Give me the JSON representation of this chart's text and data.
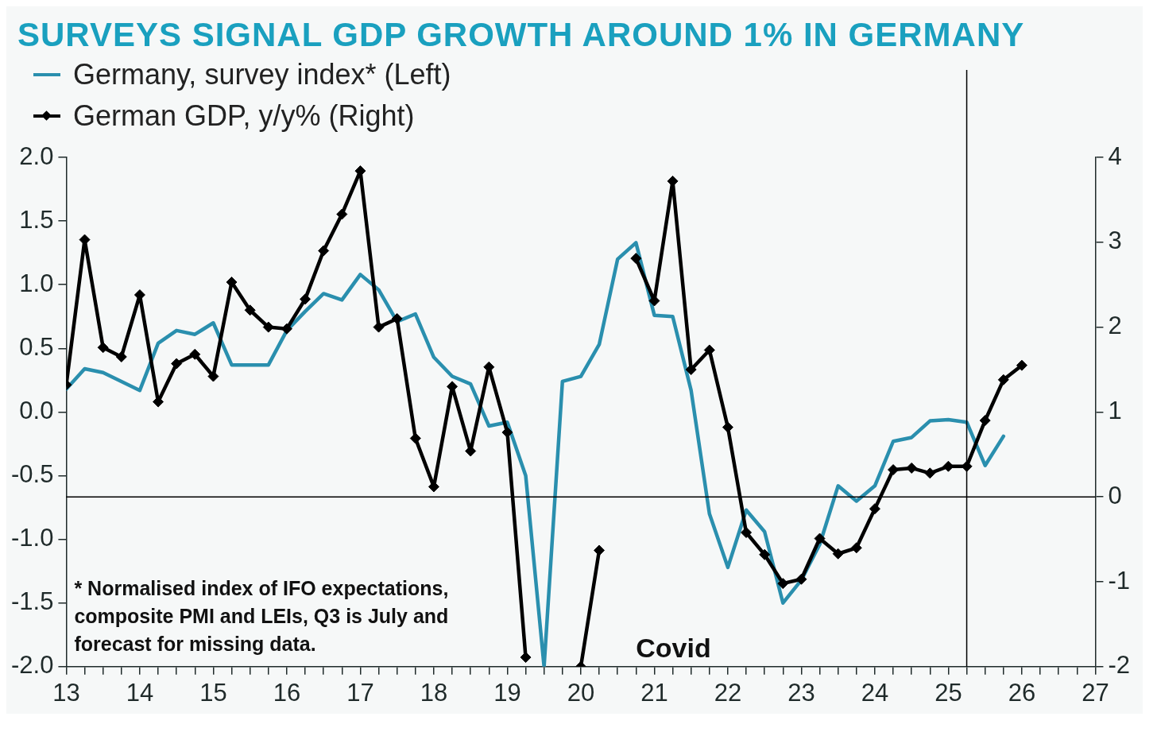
{
  "chart_data": {
    "type": "line",
    "title": "SURVEYS SIGNAL GDP GROWTH AROUND 1% IN GERMANY",
    "legend": "top left",
    "xlim": [
      13,
      27
    ],
    "xticks": [
      13,
      {
        "value": 13.25,
        "label": null
      },
      {
        "value": 13.5,
        "label": null
      },
      {
        "value": 13.75,
        "label": null
      },
      14,
      {
        "value": 14.25,
        "label": null
      },
      {
        "value": 14.5,
        "label": null
      },
      {
        "value": 14.75,
        "label": null
      },
      15,
      {
        "value": 15.25,
        "label": null
      },
      {
        "value": 15.5,
        "label": null
      },
      {
        "value": 15.75,
        "label": null
      },
      16,
      {
        "value": 16.25,
        "label": null
      },
      {
        "value": 16.5,
        "label": null
      },
      {
        "value": 16.75,
        "label": null
      },
      17,
      {
        "value": 17.25,
        "label": null
      },
      {
        "value": 17.5,
        "label": null
      },
      {
        "value": 17.75,
        "label": null
      },
      18,
      {
        "value": 18.25,
        "label": null
      },
      {
        "value": 18.5,
        "label": null
      },
      {
        "value": 18.75,
        "label": null
      },
      19,
      {
        "value": 19.25,
        "label": null
      },
      {
        "value": 19.5,
        "label": null
      },
      {
        "value": 19.75,
        "label": null
      },
      20,
      {
        "value": 20.25,
        "label": null
      },
      {
        "value": 20.5,
        "label": null
      },
      {
        "value": 20.75,
        "label": null
      },
      21,
      {
        "value": 21.25,
        "label": null
      },
      {
        "value": 21.5,
        "label": null
      },
      {
        "value": 21.75,
        "label": null
      },
      22,
      {
        "value": 22.25,
        "label": null
      },
      {
        "value": 22.5,
        "label": null
      },
      {
        "value": 22.75,
        "label": null
      },
      23,
      {
        "value": 23.25,
        "label": null
      },
      {
        "value": 23.5,
        "label": null
      },
      {
        "value": 23.75,
        "label": null
      },
      24,
      {
        "value": 24.25,
        "label": null
      },
      {
        "value": 24.5,
        "label": null
      },
      {
        "value": 24.75,
        "label": null
      },
      25,
      {
        "value": 25.25,
        "label": null
      },
      {
        "value": 25.5,
        "label": null
      },
      {
        "value": 25.75,
        "label": null
      },
      26,
      {
        "value": 26.25,
        "label": null
      },
      {
        "value": 26.5,
        "label": null
      },
      {
        "value": 26.75,
        "label": null
      },
      27
    ],
    "ylim": [
      -2,
      2
    ],
    "yticks": [
      {
        "value": -2,
        "label": "-2.0"
      },
      {
        "value": -1.5,
        "label": "-1.5"
      },
      {
        "value": -1,
        "label": "-1.0"
      },
      {
        "value": -0.5,
        "label": "-0.5"
      },
      {
        "value": 0,
        "label": "0.0"
      },
      {
        "value": 0.5,
        "label": "0.5"
      },
      {
        "value": 1,
        "label": "1.0"
      },
      {
        "value": 1.5,
        "label": "1.5"
      },
      {
        "value": 2,
        "label": "2.0"
      }
    ],
    "y2lim": [
      -2,
      4
    ],
    "y2ticks": [
      -2,
      -1,
      0,
      1,
      2,
      3,
      4
    ],
    "ref_lines": [
      {
        "axis": "y2",
        "value": 0,
        "color": "#000000"
      },
      {
        "axis": "x",
        "value": 25.25,
        "color": "#000000"
      }
    ],
    "annotations": [
      "Covid",
      "* Normalised index of IFO expectations, composite PMI and LEIs, Q3 is July and forecast for missing data."
    ],
    "series": [
      {
        "name": "Germany, survey index* (Left)",
        "color": "#2a8fae",
        "marker": "none",
        "x": [
          13,
          13.25,
          13.5,
          13.75,
          14,
          14.25,
          14.5,
          14.75,
          15,
          15.25,
          15.5,
          15.75,
          16,
          16.25,
          16.5,
          16.75,
          17,
          17.25,
          17.5,
          17.75,
          18,
          18.25,
          18.5,
          18.75,
          19,
          19.25,
          19.5,
          19.75,
          20,
          20.25,
          20.5,
          20.75,
          21,
          21.25,
          21.5,
          21.75,
          22,
          22.25,
          22.5,
          22.75,
          23,
          23.25,
          23.5,
          23.75,
          24,
          24.25,
          24.5,
          24.75,
          25,
          25.25,
          25.5,
          25.75
        ],
        "values": [
          0.18,
          0.34,
          0.31,
          0.24,
          0.17,
          0.54,
          0.64,
          0.61,
          0.7,
          0.37,
          0.37,
          0.37,
          0.64,
          0.79,
          0.93,
          0.88,
          1.08,
          0.96,
          0.71,
          0.77,
          0.43,
          0.28,
          0.22,
          -0.11,
          -0.08,
          -0.5,
          -2.0,
          0.24,
          0.28,
          0.53,
          1.2,
          1.33,
          0.76,
          0.75,
          0.17,
          -0.8,
          -1.22,
          -0.77,
          -0.94,
          -1.5,
          -1.32,
          -1.04,
          -0.58,
          -0.7,
          -0.58,
          -0.23,
          -0.2,
          -0.07,
          -0.06,
          -0.08,
          -0.42,
          -0.19
        ]
      },
      {
        "name": "German GDP, y/y% (Right)",
        "color": "#000000",
        "marker": "diamond",
        "axis": "y2",
        "x": [
          13,
          13.25,
          13.5,
          13.75,
          14,
          14.25,
          14.5,
          14.75,
          15,
          15.25,
          15.5,
          15.75,
          16,
          16.25,
          16.5,
          16.75,
          17,
          17.25,
          17.5,
          17.75,
          18,
          18.25,
          18.5,
          18.75,
          19,
          19.25,
          19.5,
          19.75,
          20,
          20.25,
          20.5,
          20.75,
          21,
          21.25,
          21.5,
          21.75,
          22,
          22.25,
          22.5,
          22.75,
          23,
          23.25,
          23.5,
          23.75,
          24,
          24.25,
          24.5,
          24.75,
          25,
          25.25,
          25.5,
          25.75,
          26
        ],
        "values": [
          1.32,
          3.03,
          1.76,
          1.65,
          2.38,
          1.12,
          1.57,
          1.68,
          1.42,
          2.53,
          2.2,
          2.0,
          1.98,
          2.33,
          2.9,
          3.33,
          3.84,
          2.0,
          2.1,
          0.69,
          0.12,
          1.3,
          0.54,
          1.53,
          0.76,
          -1.89,
          null,
          null,
          -2.0,
          -0.63,
          null,
          2.81,
          2.31,
          3.72,
          1.5,
          1.73,
          0.82,
          -0.42,
          -0.68,
          -1.02,
          -0.97,
          -0.49,
          -0.67,
          -0.6,
          -0.14,
          0.32,
          0.34,
          0.28,
          0.36,
          0.36,
          0.9,
          1.38,
          1.55
        ]
      }
    ]
  }
}
